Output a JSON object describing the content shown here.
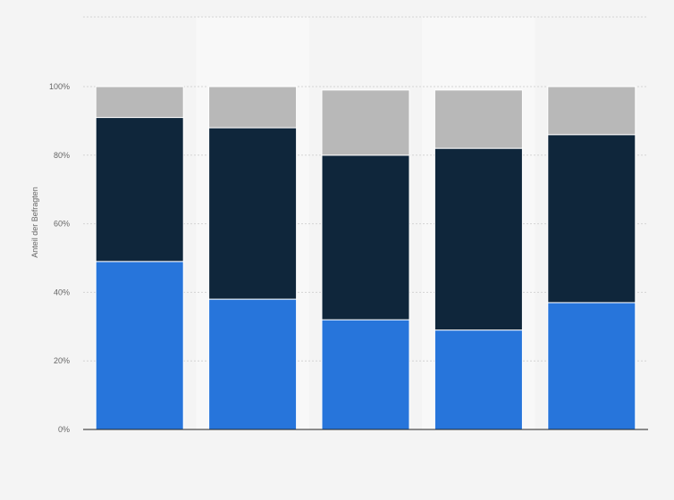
{
  "chart_data": {
    "type": "bar",
    "stacked": true,
    "ylabel": "Anteil der Befragten",
    "ylim": [
      0,
      100
    ],
    "y_ticks": [
      "0%",
      "20%",
      "40%",
      "60%",
      "80%",
      "100%"
    ],
    "y_tick_values": [
      0,
      20,
      40,
      60,
      80,
      100
    ],
    "categories": [
      "",
      "",
      "",
      "",
      ""
    ],
    "series": [
      {
        "color": "#2775db",
        "values": [
          49,
          38,
          32,
          29,
          37
        ]
      },
      {
        "color": "#0f263b",
        "values": [
          42,
          50,
          48,
          53,
          49
        ]
      },
      {
        "color": "#b8b8b8",
        "values": [
          9,
          12,
          19,
          17,
          14
        ]
      }
    ],
    "grid": true,
    "legend": "none"
  },
  "colors": {
    "background": "#f4f4f4",
    "band": "#f8f8f8",
    "grid": "#d3d3d3",
    "axis": "#222222"
  }
}
